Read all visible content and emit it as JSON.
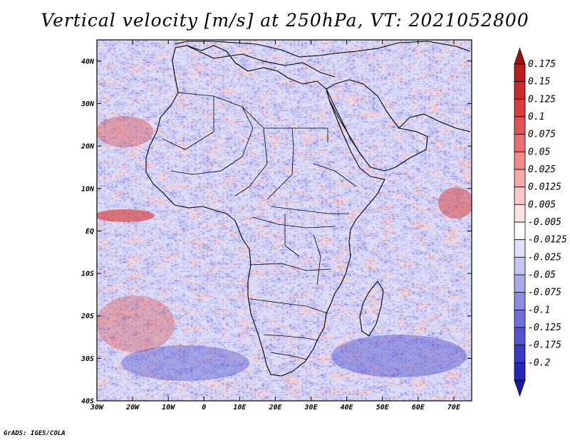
{
  "title": "Vertical velocity [m/s] at 250hPa, VT: 2021052800",
  "credit": "GrADS: IGES/COLA",
  "map": {
    "region": "Africa",
    "variable": "vertical velocity",
    "units": "m/s",
    "level": "250hPa",
    "valid_time": "2021052800",
    "lon_range": [
      -30,
      75
    ],
    "lat_range": [
      -40,
      45
    ],
    "lat_ticks": [
      {
        "value": 40,
        "label": "40N"
      },
      {
        "value": 30,
        "label": "30N"
      },
      {
        "value": 20,
        "label": "20N"
      },
      {
        "value": 10,
        "label": "10N"
      },
      {
        "value": 0,
        "label": "EQ"
      },
      {
        "value": -10,
        "label": "10S"
      },
      {
        "value": -20,
        "label": "20S"
      },
      {
        "value": -30,
        "label": "30S"
      },
      {
        "value": -40,
        "label": "40S"
      }
    ],
    "lon_ticks": [
      {
        "value": -30,
        "label": "30W"
      },
      {
        "value": -20,
        "label": "20W"
      },
      {
        "value": -10,
        "label": "10W"
      },
      {
        "value": 0,
        "label": "0"
      },
      {
        "value": 10,
        "label": "10E"
      },
      {
        "value": 20,
        "label": "20E"
      },
      {
        "value": 30,
        "label": "30E"
      },
      {
        "value": 40,
        "label": "40E"
      },
      {
        "value": 50,
        "label": "50E"
      },
      {
        "value": 60,
        "label": "60E"
      },
      {
        "value": 70,
        "label": "70E"
      }
    ]
  },
  "colorbar": {
    "levels": [
      {
        "label": "0.175",
        "color": "#b81c1c"
      },
      {
        "label": "0.15",
        "color": "#c92a2a"
      },
      {
        "label": "0.125",
        "color": "#d83c3c"
      },
      {
        "label": "0.1",
        "color": "#e35353"
      },
      {
        "label": "0.075",
        "color": "#ec6d6d"
      },
      {
        "label": "0.05",
        "color": "#f28a8a"
      },
      {
        "label": "0.025",
        "color": "#f7a9a9"
      },
      {
        "label": "0.0125",
        "color": "#fbc6c6"
      },
      {
        "label": "0.005",
        "color": "#fde2e2"
      },
      {
        "label": "-0.005",
        "color": "#ffffff"
      },
      {
        "label": "-0.0125",
        "color": "#e0e0f9"
      },
      {
        "label": "-0.025",
        "color": "#c6c6f4"
      },
      {
        "label": "-0.05",
        "color": "#a9a9ee"
      },
      {
        "label": "-0.075",
        "color": "#8c8ce6"
      },
      {
        "label": "-0.1",
        "color": "#6f6fdc"
      },
      {
        "label": "-0.125",
        "color": "#5454d2"
      },
      {
        "label": "-0.175",
        "color": "#3a3ac6"
      },
      {
        "label": "-0.2",
        "color": "#2626b8"
      }
    ],
    "top_triangle_color": "#a01010",
    "bottom_triangle_color": "#1a1a9e"
  },
  "field_colors": {
    "background": "#b9b9f0",
    "positive": "#f2a0a0",
    "negative": "#8c8ce6",
    "strong_positive": "#d94848",
    "strong_negative": "#5050cc",
    "coast": "#000000"
  }
}
